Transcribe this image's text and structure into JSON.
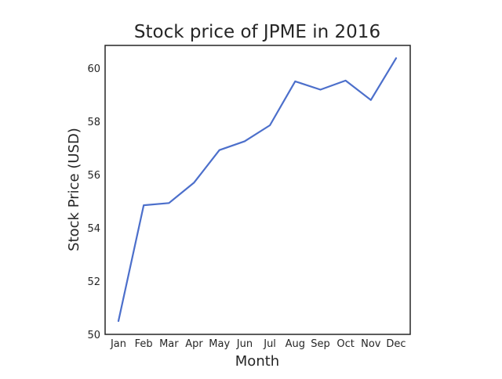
{
  "chart_data": {
    "type": "line",
    "title": "Stock price of JPME in 2016",
    "xlabel": "Month",
    "ylabel": "Stock Price (USD)",
    "categories": [
      "Jan",
      "Feb",
      "Mar",
      "Apr",
      "May",
      "Jun",
      "Jul",
      "Aug",
      "Sep",
      "Oct",
      "Nov",
      "Dec"
    ],
    "series": [
      {
        "values": [
          50.5,
          54.85,
          54.93,
          55.7,
          56.92,
          57.25,
          57.85,
          59.5,
          59.19,
          59.53,
          58.8,
          60.37
        ],
        "color": "#4c6fcb"
      }
    ],
    "ylim": [
      50,
      60.85
    ],
    "yticks": [
      50,
      52,
      54,
      56,
      58,
      60
    ],
    "grid": false,
    "legend": "none"
  }
}
